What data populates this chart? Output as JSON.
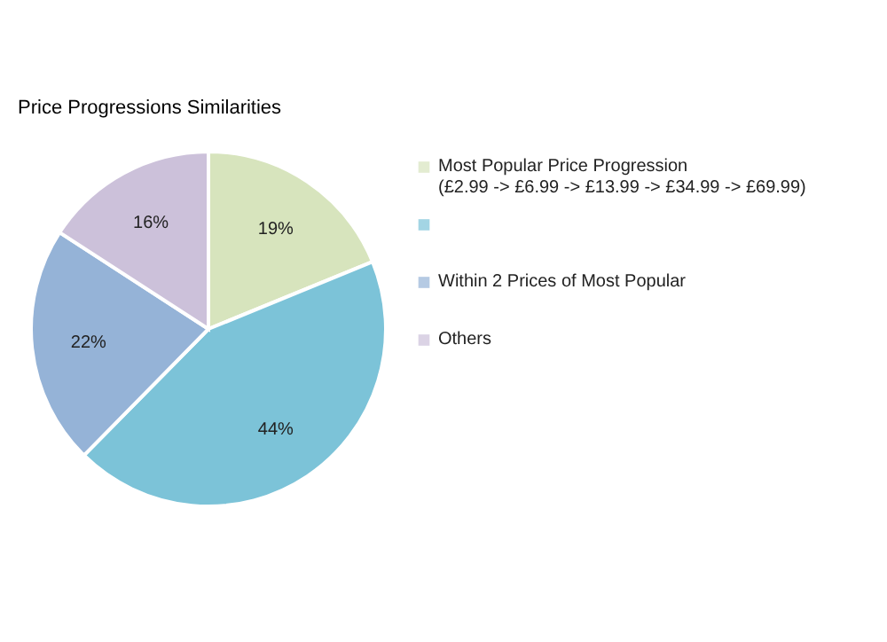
{
  "chart_data": {
    "type": "pie",
    "title": "Price Progressions  Similarities",
    "categories": [
      "Most Popular Price Progression\n(£2.99 -> £6.99 -> £13.99 -> £34.99 -> £69.99)",
      null,
      "Within 2 Prices of Most Popular",
      "Others"
    ],
    "values": [
      19,
      44,
      22,
      16
    ],
    "value_labels": [
      "19%",
      "44%",
      "22%",
      "16%"
    ],
    "colors": [
      "#d7e4bd",
      "#7cc3d8",
      "#95b3d7",
      "#ccc1da"
    ],
    "legend": "right"
  }
}
